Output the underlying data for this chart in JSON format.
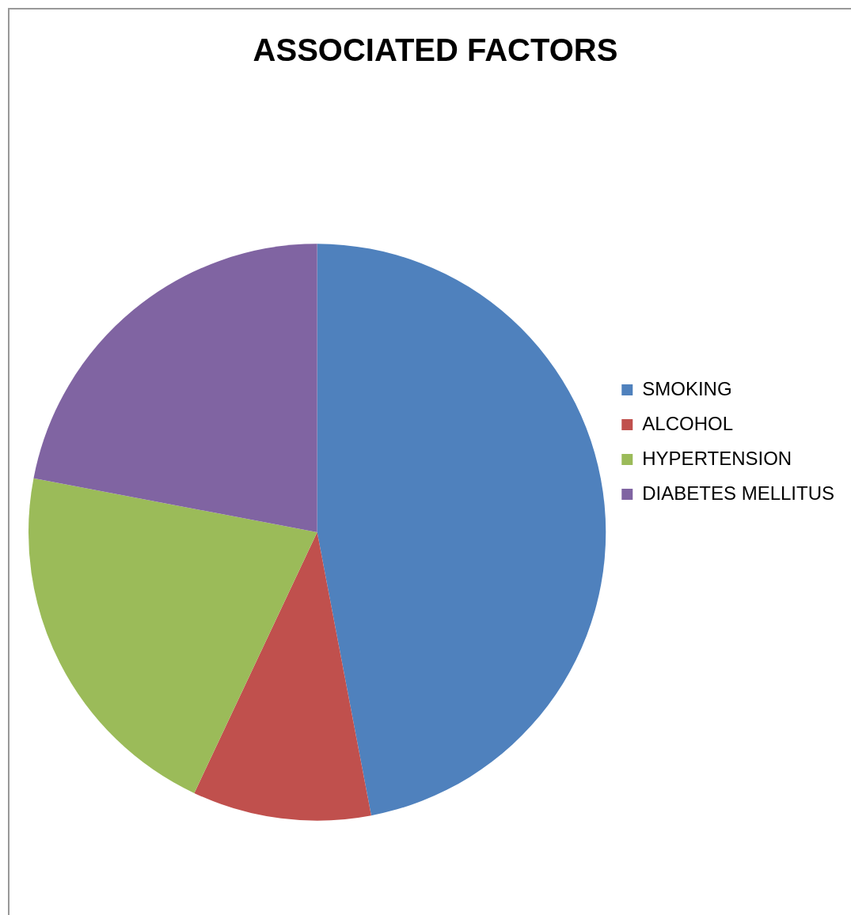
{
  "chart_data": {
    "type": "pie",
    "title": "ASSOCIATED FACTORS",
    "categories": [
      "SMOKING",
      "ALCOHOL",
      "HYPERTENSION",
      "DIABETES MELLITUS"
    ],
    "values": [
      47,
      10,
      21,
      22
    ],
    "colors": [
      "#4f81bd",
      "#c0504d",
      "#9bbb59",
      "#8064a2"
    ],
    "legend": "right"
  }
}
